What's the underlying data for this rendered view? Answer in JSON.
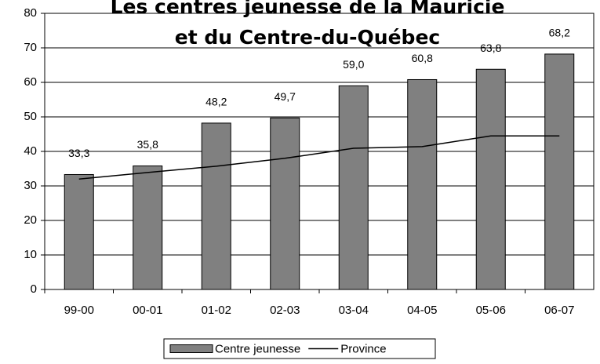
{
  "chart_data": {
    "type": "bar",
    "title": [
      "Les centres jeunesse de la Mauricie",
      "et du Centre-du-Québec"
    ],
    "categories": [
      "99-00",
      "00-01",
      "01-02",
      "02-03",
      "03-04",
      "04-05",
      "05-06",
      "06-07"
    ],
    "series": [
      {
        "name": "Centre jeunesse",
        "type": "bar",
        "color": "#808080",
        "values": [
          33.3,
          35.8,
          48.2,
          49.7,
          59.0,
          60.8,
          63.8,
          68.2
        ],
        "value_labels": [
          "33,3",
          "35,8",
          "48,2",
          "49,7",
          "59,0",
          "60,8",
          "63,8",
          "68,2"
        ]
      },
      {
        "name": "Province",
        "type": "line",
        "color": "#000000",
        "values": [
          32.0,
          33.9,
          35.7,
          38.0,
          40.9,
          41.4,
          44.5,
          44.5
        ]
      }
    ],
    "ylim": [
      0,
      80
    ],
    "yticks": [
      0,
      10,
      20,
      30,
      40,
      50,
      60,
      70,
      80
    ],
    "grid": true,
    "legend": "bottom"
  }
}
